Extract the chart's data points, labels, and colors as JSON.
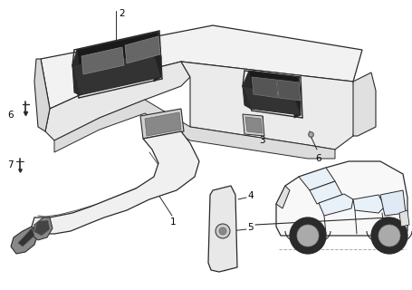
{
  "background_color": "#ffffff",
  "line_color": "#2a2a2a",
  "fig_width": 4.55,
  "fig_height": 3.2,
  "dpi": 100
}
